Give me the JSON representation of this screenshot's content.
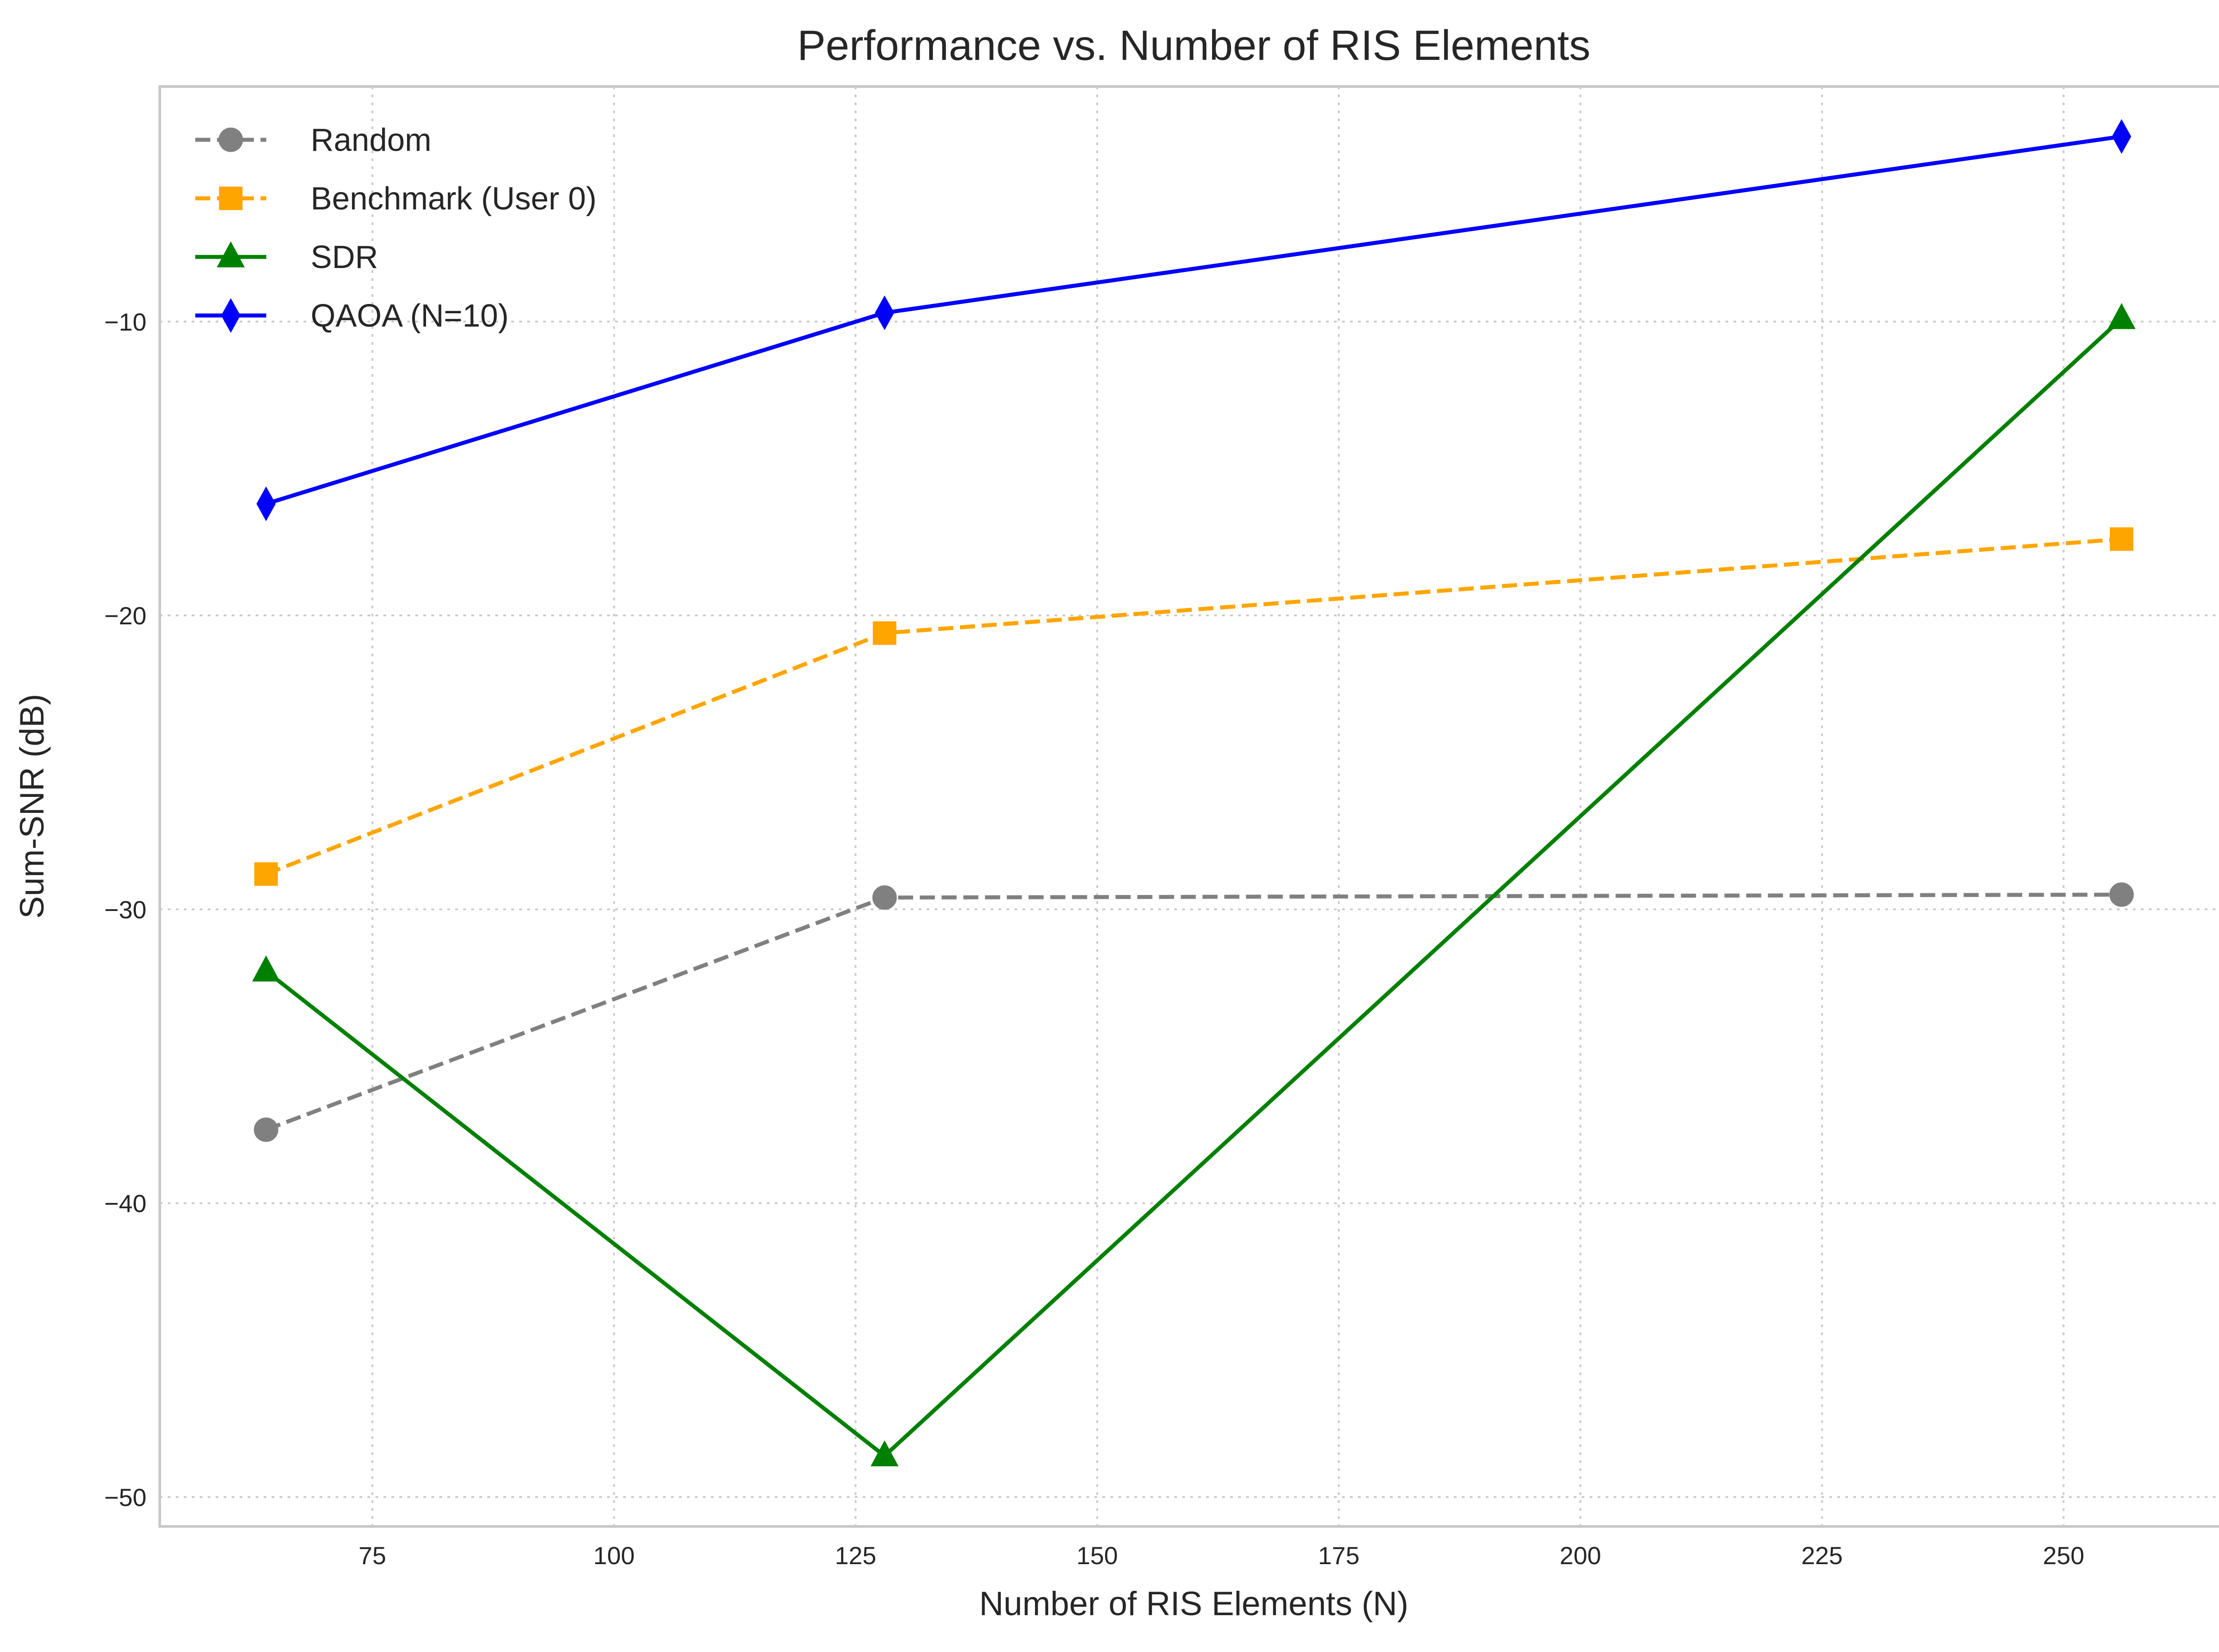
{
  "chart_data": {
    "type": "line",
    "title": "Performance vs. Number of RIS Elements",
    "xlabel": "Number of RIS Elements (N)",
    "ylabel": "Sum-SNR (dB)",
    "xlim": [
      53,
      267
    ],
    "ylim": [
      -51,
      -2
    ],
    "xticks": [
      75,
      100,
      125,
      150,
      175,
      200,
      225,
      250
    ],
    "yticks": [
      -10,
      -20,
      -30,
      -40,
      -50
    ],
    "xtick_labels": [
      "75",
      "100",
      "125",
      "150",
      "175",
      "200",
      "225",
      "250"
    ],
    "ytick_labels": [
      "−10",
      "−20",
      "−30",
      "−40",
      "−50"
    ],
    "grid": true,
    "legend_position": "top-left",
    "x": [
      64,
      128,
      256
    ],
    "series": [
      {
        "name": "Random",
        "values": [
          -37.5,
          -29.6,
          -29.5
        ],
        "color": "#808080",
        "dash": "dashed",
        "marker": "circle"
      },
      {
        "name": "Benchmark (User 0)",
        "values": [
          -28.8,
          -20.6,
          -17.4
        ],
        "color": "#ffa500",
        "dash": "dashed",
        "marker": "square"
      },
      {
        "name": "SDR",
        "values": [
          -32.1,
          -48.6,
          -9.9
        ],
        "color": "#008000",
        "dash": "solid",
        "marker": "triangle"
      },
      {
        "name": "QAOA (N=10)",
        "values": [
          -16.2,
          -9.7,
          -3.7
        ],
        "color": "#0000ff",
        "dash": "solid",
        "marker": "diamond"
      }
    ]
  }
}
